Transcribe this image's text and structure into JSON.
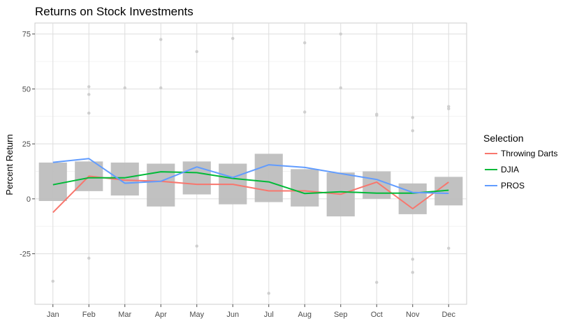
{
  "chart_data": {
    "type": "line",
    "title": "Returns on Stock Investments",
    "xlabel": "",
    "ylabel": "Percent Return",
    "categories": [
      "Jan",
      "Feb",
      "Mar",
      "Apr",
      "May",
      "Jun",
      "Jul",
      "Aug",
      "Sep",
      "Oct",
      "Nov",
      "Dec"
    ],
    "ylim": [
      -48,
      80
    ],
    "yticks": [
      -25,
      0,
      25,
      50,
      75
    ],
    "ytick_labels": [
      "-25",
      "0",
      "25",
      "50",
      "75"
    ],
    "grid": true,
    "legend": {
      "title": "Selection",
      "position": "right"
    },
    "series": [
      {
        "name": "Throwing Darts",
        "color": "#F8766D",
        "values": [
          -6.2,
          10.3,
          8.5,
          8.0,
          6.6,
          6.6,
          3.6,
          3.6,
          2.1,
          7.6,
          -4.5,
          7.6
        ]
      },
      {
        "name": "DJIA",
        "color": "#00BA38",
        "values": [
          6.4,
          9.6,
          9.6,
          12.3,
          11.9,
          9.3,
          7.7,
          2.4,
          3.2,
          2.6,
          2.6,
          3.9
        ]
      },
      {
        "name": "PROS",
        "color": "#619CFF",
        "values": [
          16.6,
          18.3,
          7.1,
          8.0,
          14.5,
          9.7,
          15.5,
          14.3,
          11.5,
          8.8,
          2.9,
          2.5
        ]
      }
    ],
    "boxes": {
      "color": "#bebebe",
      "q1": [
        -1.0,
        3.5,
        1.5,
        -3.5,
        2.0,
        -2.5,
        -1.5,
        -3.5,
        -8.0,
        0.0,
        -7.0,
        -3.0
      ],
      "q3": [
        16.5,
        17.0,
        16.5,
        16.0,
        17.0,
        16.0,
        20.5,
        13.5,
        12.0,
        12.5,
        7.0,
        10.0
      ]
    },
    "outliers": [
      {
        "month": "Jan",
        "values": [
          -37.5
        ]
      },
      {
        "month": "Feb",
        "values": [
          51.0,
          47.5,
          39.0,
          -27.0
        ]
      },
      {
        "month": "Mar",
        "values": [
          50.5
        ]
      },
      {
        "month": "Apr",
        "values": [
          72.5,
          50.5
        ]
      },
      {
        "month": "May",
        "values": [
          67.0,
          -21.5
        ]
      },
      {
        "month": "Jun",
        "values": [
          73.0
        ]
      },
      {
        "month": "Jul",
        "values": [
          -43.0
        ]
      },
      {
        "month": "Aug",
        "values": [
          71.0,
          39.5
        ]
      },
      {
        "month": "Sep",
        "values": [
          75.0,
          50.5
        ]
      },
      {
        "month": "Oct",
        "values": [
          38.5,
          38.0,
          -38.0
        ]
      },
      {
        "month": "Nov",
        "values": [
          37.0,
          31.0,
          -27.5,
          -33.5
        ]
      },
      {
        "month": "Dec",
        "values": [
          42.0,
          41.0,
          -22.5
        ]
      }
    ]
  }
}
